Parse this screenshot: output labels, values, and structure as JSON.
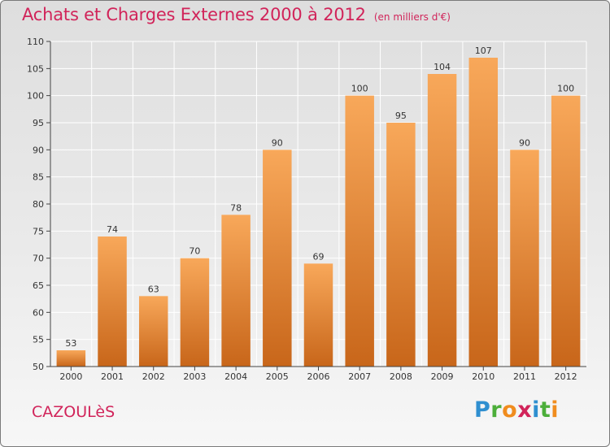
{
  "title": "Achats et Charges Externes 2000 à 2012",
  "subtitle": "(en milliers d'€)",
  "commune": "CAZOULèS",
  "logo": {
    "letters": [
      {
        "ch": "P",
        "color": "#2f8fd0"
      },
      {
        "ch": "r",
        "color": "#4cae3a"
      },
      {
        "ch": "o",
        "color": "#f08c1e"
      },
      {
        "ch": "x",
        "color": "#d1245a"
      },
      {
        "ch": "i",
        "color": "#2f8fd0"
      },
      {
        "ch": "t",
        "color": "#4cae3a"
      },
      {
        "ch": "i",
        "color": "#f08c1e"
      }
    ]
  },
  "colors": {
    "title": "#d1245a",
    "bar_top": "#f8a85a",
    "bar_bottom": "#c8661a",
    "grid": "#ffffff",
    "axis": "#444444"
  },
  "chart_data": {
    "type": "bar",
    "title": "Achats et Charges Externes 2000 à 2012",
    "subtitle": "(en milliers d'€)",
    "categories": [
      "2000",
      "2001",
      "2002",
      "2003",
      "2004",
      "2005",
      "2006",
      "2007",
      "2008",
      "2009",
      "2010",
      "2011",
      "2012"
    ],
    "values": [
      53,
      74,
      63,
      70,
      78,
      90,
      69,
      100,
      95,
      104,
      107,
      90,
      100
    ],
    "ylim": [
      50,
      110
    ],
    "yticks": [
      50,
      55,
      60,
      65,
      70,
      75,
      80,
      85,
      90,
      95,
      100,
      105,
      110
    ],
    "grid": true,
    "xlabel": "",
    "ylabel": ""
  }
}
